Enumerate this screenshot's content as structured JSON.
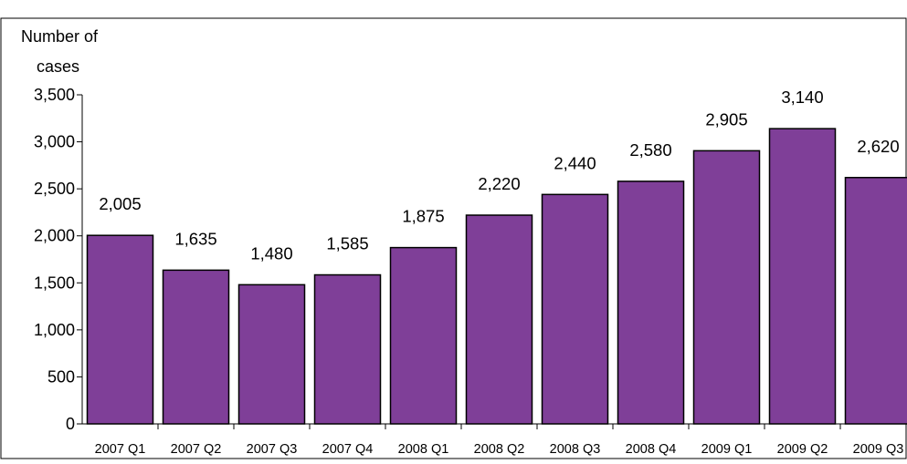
{
  "chart_data": {
    "type": "bar",
    "title": "",
    "ylabel_lines": [
      "Number of",
      "cases"
    ],
    "xlabel": "",
    "categories": [
      "2007 Q1",
      "2007 Q2",
      "2007 Q3",
      "2007 Q4",
      "2008 Q1",
      "2008 Q2",
      "2008 Q3",
      "2008 Q4",
      "2009 Q1",
      "2009 Q2",
      "2009 Q3"
    ],
    "values": [
      2005,
      1635,
      1480,
      1585,
      1875,
      2220,
      2440,
      2580,
      2905,
      3140,
      2620
    ],
    "data_labels": [
      "2,005",
      "1,635",
      "1,480",
      "1,585",
      "1,875",
      "2,220",
      "2,440",
      "2,580",
      "2,905",
      "3,140",
      "2,620"
    ],
    "ylim": [
      0,
      3500
    ],
    "yticks": [
      0,
      500,
      1000,
      1500,
      2000,
      2500,
      3000,
      3500
    ],
    "ytick_labels": [
      "0",
      "500",
      "1,000",
      "1,500",
      "2,000",
      "2,500",
      "3,000",
      "3,500"
    ],
    "grid": false,
    "legend": "none",
    "bar_color": "#7f3f98",
    "bar_edge_color": "#000000"
  }
}
